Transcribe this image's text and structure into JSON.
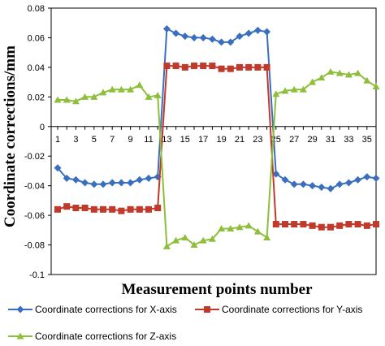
{
  "chart_data": {
    "type": "line",
    "xlabel": "Measurement points number",
    "ylabel": "Coordinate corrections/mm",
    "ylim": [
      -0.1,
      0.08
    ],
    "yticks": [
      "0.08",
      "0.06",
      "0.04",
      "0.02",
      "0",
      "-0.02",
      "-0.04",
      "-0.06",
      "-0.08",
      "-0.1"
    ],
    "xticks": [
      "1",
      "3",
      "5",
      "7",
      "9",
      "11",
      "13",
      "15",
      "17",
      "19",
      "21",
      "23",
      "25",
      "27",
      "29",
      "31",
      "33",
      "35"
    ],
    "x": [
      1,
      2,
      3,
      4,
      5,
      6,
      7,
      8,
      9,
      10,
      11,
      12,
      13,
      14,
      15,
      16,
      17,
      18,
      19,
      20,
      21,
      22,
      23,
      24,
      25,
      26,
      27,
      28,
      29,
      30,
      31,
      32,
      33,
      34,
      35,
      36
    ],
    "grid": false,
    "legend_position": "bottom",
    "series": [
      {
        "name": "Coordinate corrections for X-axis",
        "color": "#3a6fbf",
        "marker": "diamond",
        "values": [
          -0.028,
          -0.035,
          -0.036,
          -0.038,
          -0.039,
          -0.039,
          -0.038,
          -0.038,
          -0.038,
          -0.036,
          -0.035,
          -0.034,
          0.066,
          0.063,
          0.061,
          0.06,
          0.06,
          0.059,
          0.057,
          0.057,
          0.061,
          0.063,
          0.065,
          0.064,
          -0.032,
          -0.036,
          -0.039,
          -0.039,
          -0.04,
          -0.041,
          -0.042,
          -0.039,
          -0.038,
          -0.036,
          -0.034,
          -0.035
        ]
      },
      {
        "name": "Coordinate corrections for Y-axis",
        "color": "#c0392b",
        "marker": "square",
        "values": [
          -0.056,
          -0.054,
          -0.055,
          -0.055,
          -0.056,
          -0.056,
          -0.056,
          -0.057,
          -0.056,
          -0.056,
          -0.056,
          -0.055,
          0.041,
          0.041,
          0.04,
          0.041,
          0.041,
          0.041,
          0.039,
          0.039,
          0.04,
          0.04,
          0.04,
          0.04,
          -0.066,
          -0.066,
          -0.066,
          -0.066,
          -0.067,
          -0.068,
          -0.068,
          -0.067,
          -0.066,
          -0.066,
          -0.067,
          -0.066
        ]
      },
      {
        "name": "Coordinate corrections for Z-axis",
        "color": "#8dbf3a",
        "marker": "triangle",
        "values": [
          0.018,
          0.018,
          0.017,
          0.02,
          0.02,
          0.023,
          0.025,
          0.025,
          0.025,
          0.028,
          0.02,
          0.021,
          -0.081,
          -0.077,
          -0.075,
          -0.08,
          -0.077,
          -0.076,
          -0.069,
          -0.069,
          -0.068,
          -0.067,
          -0.071,
          -0.075,
          0.022,
          0.024,
          0.025,
          0.025,
          0.03,
          0.033,
          0.037,
          0.036,
          0.035,
          0.036,
          0.031,
          0.027
        ]
      }
    ]
  }
}
